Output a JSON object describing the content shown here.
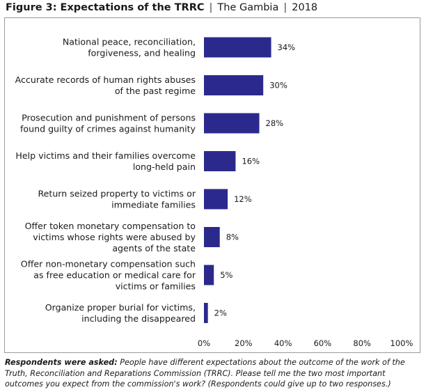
{
  "header": {
    "figure_label": "Figure 3: Expectations of the TRRC",
    "country": "The Gambia",
    "year": "2018",
    "separator": "|"
  },
  "chart_data": {
    "type": "bar",
    "orientation": "horizontal",
    "categories": [
      [
        "National peace, reconciliation,",
        "forgiveness, and healing"
      ],
      [
        "Accurate records of human rights abuses",
        "of the past regime"
      ],
      [
        "Prosecution and punishment of persons",
        "found guilty of crimes against humanity"
      ],
      [
        "Help victims and their families overcome",
        "long-held pain"
      ],
      [
        "Return seized property to victims or",
        "immediate families"
      ],
      [
        "Offer token monetary compensation to",
        "victims whose rights were abused by",
        "agents of the state"
      ],
      [
        "Offer non-monetary compensation such",
        "as free education or medical care for",
        "victims or families"
      ],
      [
        "Organize proper burial for victims,",
        "including the disappeared"
      ]
    ],
    "values": [
      34,
      30,
      28,
      16,
      12,
      8,
      5,
      2
    ],
    "value_labels": [
      "34%",
      "30%",
      "28%",
      "16%",
      "12%",
      "8%",
      "5%",
      "2%"
    ],
    "xlim": [
      0,
      100
    ],
    "xticks": [
      0,
      20,
      40,
      60,
      80,
      100
    ],
    "xtick_labels": [
      "0%",
      "20%",
      "40%",
      "60%",
      "80%",
      "100%"
    ],
    "bar_color": "#2b2a8c",
    "grid": false
  },
  "footnote": {
    "lead": "Respondents were asked:",
    "text": "People have different expectations about the outcome of the work of the Truth, Reconciliation and Reparations Commission (TRRC). Please tell me the two most important outcomes you expect from the commission's work? (Respondents could give up to two responses.)"
  }
}
